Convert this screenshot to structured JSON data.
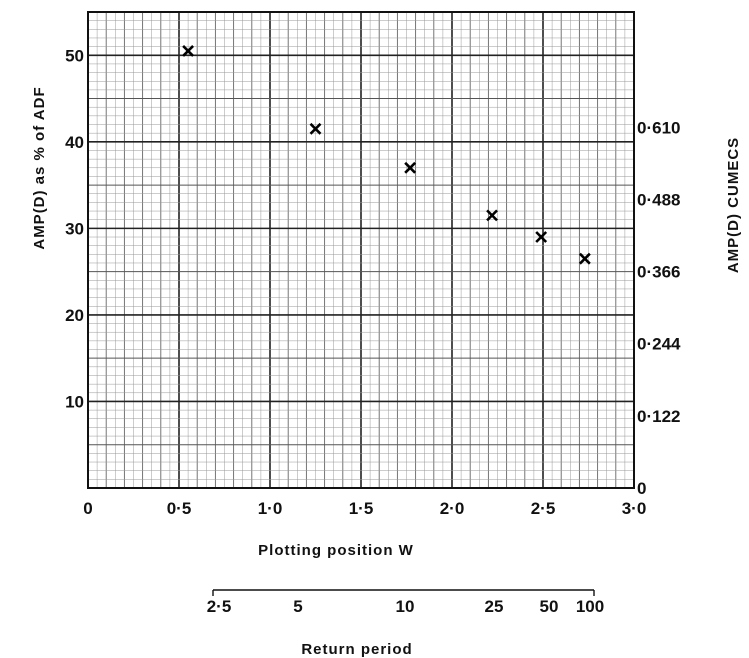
{
  "chart_data": {
    "type": "scatter",
    "title": "",
    "marker": "x",
    "xlabel": "Plotting position  W",
    "ylabel": "AMP(D)  as % of  ADF",
    "ylabel_right": "AMP(D)  CUMECS",
    "xlim": [
      0,
      3.0
    ],
    "ylim": [
      0,
      55
    ],
    "x_ticks": [
      0,
      0.5,
      1.0,
      1.5,
      2.0,
      2.5,
      3.0
    ],
    "x_tick_labels": [
      "0",
      "0·5",
      "1·0",
      "1·5",
      "2·0",
      "2·5",
      "3·0"
    ],
    "y_ticks": [
      10,
      20,
      30,
      40,
      50
    ],
    "y_tick_labels": [
      "10",
      "20",
      "30",
      "40",
      "50"
    ],
    "y_right_ticks": [
      0,
      8.33,
      16.67,
      25,
      33.33,
      41.67
    ],
    "y_right_tick_labels": [
      "0",
      "0·122",
      "0·244",
      "0·366",
      "0·488",
      "0·610"
    ],
    "grid": true,
    "points": [
      {
        "x": 0.55,
        "y": 50.5
      },
      {
        "x": 1.25,
        "y": 41.5
      },
      {
        "x": 1.77,
        "y": 37.0
      },
      {
        "x": 2.22,
        "y": 31.5
      },
      {
        "x": 2.49,
        "y": 29.0
      },
      {
        "x": 2.73,
        "y": 26.5
      }
    ],
    "secondary_axis": {
      "label": "Return period",
      "ticks": [
        2.5,
        5,
        10,
        25,
        50,
        100
      ],
      "tick_labels": [
        "2·5",
        "5",
        "10",
        "25",
        "50",
        "100"
      ]
    }
  }
}
